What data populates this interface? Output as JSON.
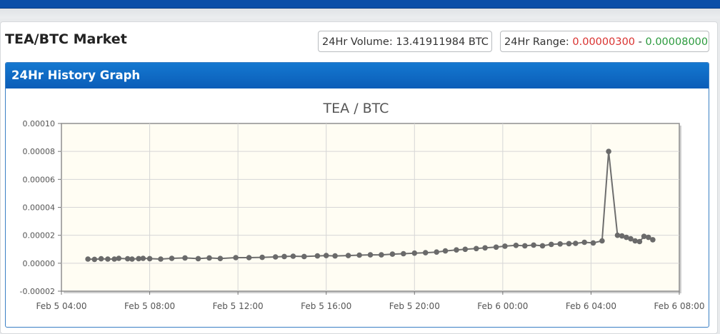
{
  "market": {
    "title": "TEA/BTC Market",
    "volume_label": "24Hr Volume:",
    "volume_value": "13.41911984 BTC",
    "range_label": "24Hr Range:",
    "range_low": "0.00000300",
    "range_sep": "-",
    "range_high": "0.00008000"
  },
  "colors": {
    "header_blue": "#0b5db8",
    "range_low": "#d9312f",
    "range_high": "#2a9a3c",
    "line": "#6e6e6e",
    "plot_bg": "#fffdf3"
  },
  "history": {
    "header": "24Hr History Graph"
  },
  "chart_data": {
    "type": "line",
    "title": "TEA / BTC",
    "xlabel": "",
    "ylabel": "",
    "x_ticks": [
      "Feb 5 04:00",
      "Feb 5 08:00",
      "Feb 5 12:00",
      "Feb 5 16:00",
      "Feb 5 20:00",
      "Feb 6 00:00",
      "Feb 6 04:00",
      "Feb 6 08:00"
    ],
    "x_range_hours": [
      0,
      28
    ],
    "y_ticks": [
      "-0.00002",
      "0.00000",
      "0.00002",
      "0.00004",
      "0.00006",
      "0.00008",
      "0.00010"
    ],
    "ylim": [
      -2e-05,
      0.0001
    ],
    "grid": true,
    "series": [
      {
        "x_hours_from_feb5_0400": [
          1.2,
          1.5,
          1.8,
          2.1,
          2.4,
          2.6,
          3.0,
          3.2,
          3.5,
          3.7,
          4.0,
          4.5,
          5.0,
          5.6,
          6.2,
          6.7,
          7.2,
          7.9,
          8.5,
          9.1,
          9.7,
          10.1,
          10.5,
          11.0,
          11.6,
          12.0,
          12.4,
          13.0,
          13.5,
          14.0,
          14.5,
          15.0,
          15.5,
          16.0,
          16.5,
          17.0,
          17.4,
          17.9,
          18.3,
          18.8,
          19.2,
          19.7,
          20.1,
          20.6,
          21.0,
          21.4,
          21.8,
          22.2,
          22.6,
          23.0,
          23.3,
          23.7,
          24.1,
          24.5,
          24.8,
          25.2,
          25.4,
          25.6,
          25.8,
          26.0,
          26.2,
          26.4,
          26.6,
          26.8
        ],
        "y": [
          3e-06,
          2.8e-06,
          3.2e-06,
          3e-06,
          3e-06,
          3.5e-06,
          3.2e-06,
          3e-06,
          3.3e-06,
          3.5e-06,
          3.3e-06,
          3e-06,
          3.5e-06,
          3.8e-06,
          3.3e-06,
          3.8e-06,
          3.4e-06,
          4e-06,
          4e-06,
          4.2e-06,
          4.5e-06,
          4.8e-06,
          5e-06,
          4.8e-06,
          5.2e-06,
          5.5e-06,
          5.2e-06,
          5.5e-06,
          5.8e-06,
          6e-06,
          6e-06,
          6.5e-06,
          6.8e-06,
          7.2e-06,
          7.5e-06,
          8e-06,
          8.8e-06,
          9.5e-06,
          1e-05,
          1.05e-05,
          1.1e-05,
          1.15e-05,
          1.22e-05,
          1.28e-05,
          1.25e-05,
          1.3e-05,
          1.25e-05,
          1.35e-05,
          1.38e-05,
          1.4e-05,
          1.42e-05,
          1.5e-05,
          1.45e-05,
          1.6e-05,
          8e-05,
          2e-05,
          1.95e-05,
          1.85e-05,
          1.75e-05,
          1.6e-05,
          1.55e-05,
          1.92e-05,
          1.85e-05,
          1.68e-05
        ]
      }
    ]
  }
}
